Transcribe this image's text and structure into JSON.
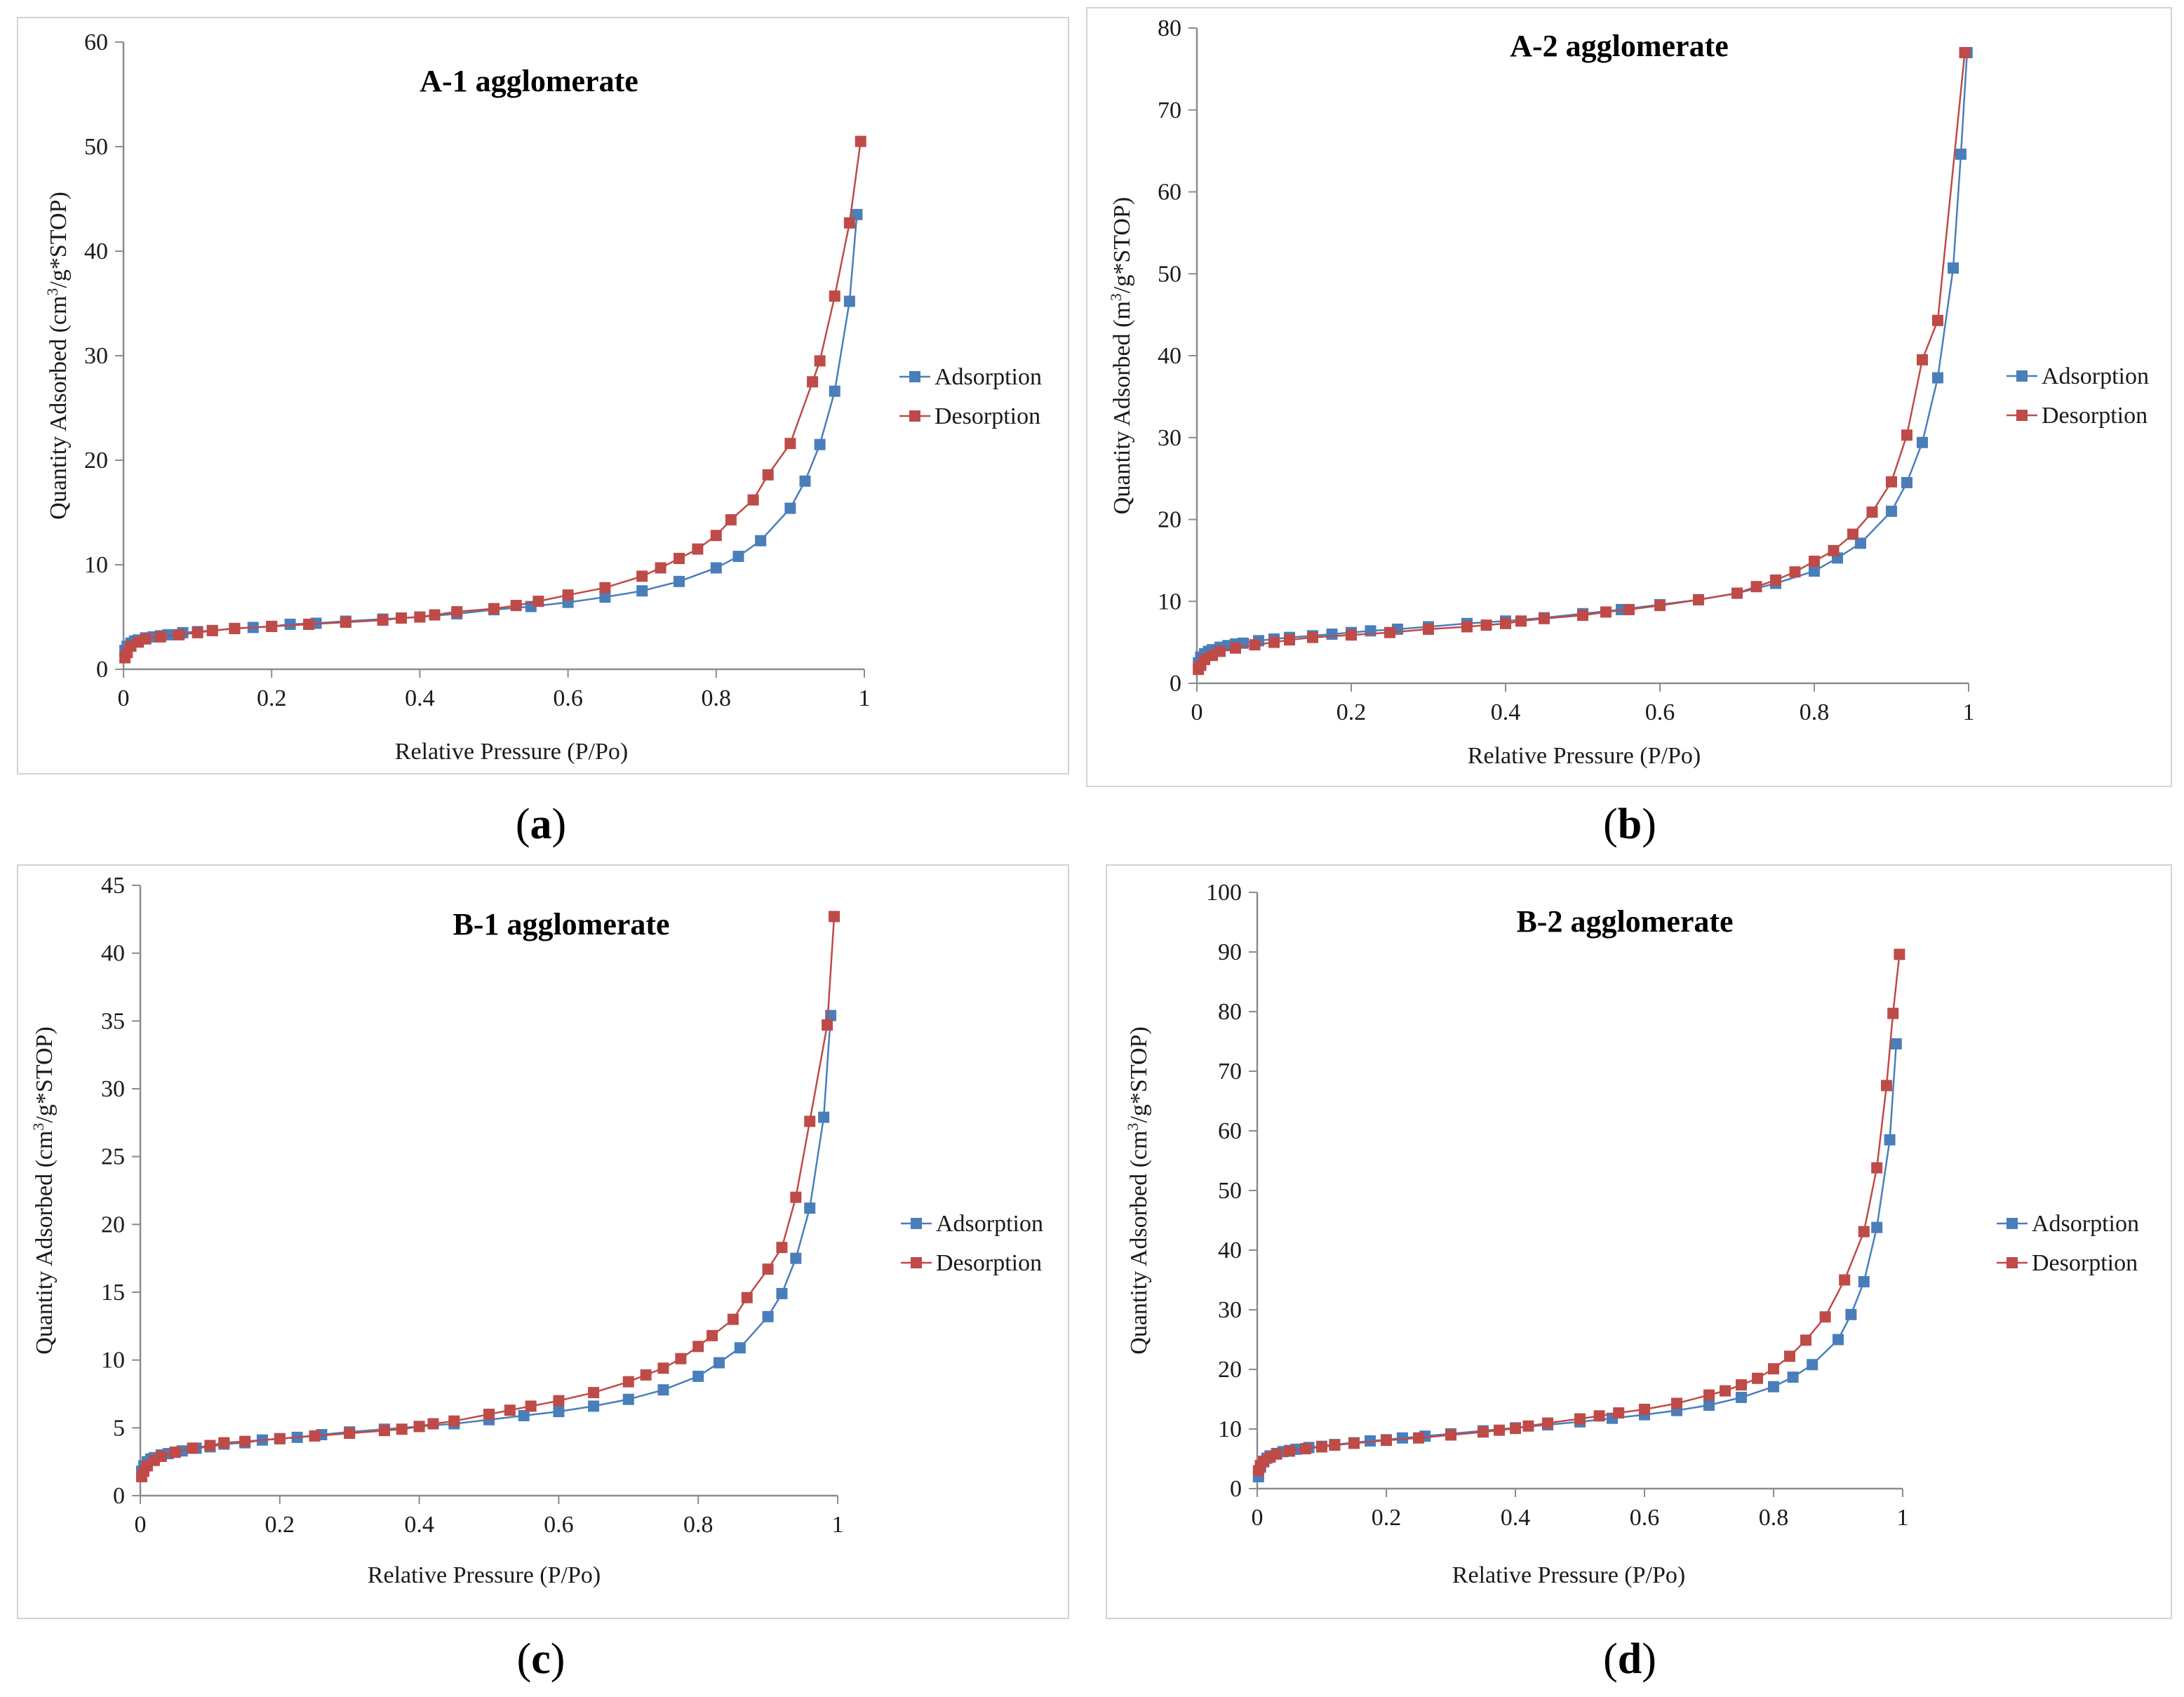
{
  "colors": {
    "adsorption": "#4a7ebb",
    "desorption": "#be4b48"
  },
  "chart_data": [
    {
      "panel": "a",
      "caption_open": "(",
      "caption_letter": "a",
      "caption_close": ")",
      "type": "line",
      "title": "A-1 agglomerate",
      "xlabel": "Relative Pressure (P/Po)",
      "ylabel_parts": [
        "Quantity Adsorbed  (cm",
        "3",
        "/g*STOP)"
      ],
      "xlim": [
        0,
        1
      ],
      "ylim": [
        0,
        60
      ],
      "xticks": [
        0,
        0.2,
        0.4,
        0.6,
        0.8,
        1
      ],
      "xtick_labels": [
        "0",
        "0.2",
        "0.4",
        "0.6",
        "0.8",
        "1"
      ],
      "yticks": [
        0,
        10,
        20,
        30,
        40,
        50,
        60
      ],
      "ytick_labels": [
        "0",
        "10",
        "20",
        "30",
        "40",
        "50",
        "60"
      ],
      "legend_position": "right",
      "series": [
        {
          "name": "Adsorption",
          "color_key": "adsorption",
          "x": [
            0.002,
            0.005,
            0.01,
            0.015,
            0.02,
            0.03,
            0.04,
            0.05,
            0.06,
            0.08,
            0.1,
            0.12,
            0.15,
            0.175,
            0.2,
            0.225,
            0.26,
            0.3,
            0.35,
            0.4,
            0.45,
            0.5,
            0.55,
            0.6,
            0.65,
            0.7,
            0.75,
            0.8,
            0.83,
            0.86,
            0.9,
            0.92,
            0.94,
            0.96,
            0.98,
            0.99
          ],
          "y": [
            1.8,
            2.2,
            2.5,
            2.7,
            2.8,
            3.0,
            3.1,
            3.2,
            3.3,
            3.5,
            3.6,
            3.7,
            3.9,
            4.0,
            4.1,
            4.3,
            4.4,
            4.6,
            4.8,
            5.0,
            5.3,
            5.7,
            6.0,
            6.4,
            6.9,
            7.5,
            8.4,
            9.7,
            10.8,
            12.3,
            15.4,
            18.0,
            21.5,
            26.6,
            35.2,
            43.5
          ]
        },
        {
          "name": "Desorption",
          "color_key": "desorption",
          "x": [
            0.995,
            0.98,
            0.96,
            0.94,
            0.93,
            0.9,
            0.87,
            0.85,
            0.82,
            0.8,
            0.775,
            0.75,
            0.725,
            0.7,
            0.65,
            0.6,
            0.56,
            0.53,
            0.5,
            0.45,
            0.42,
            0.4,
            0.375,
            0.35,
            0.3,
            0.25,
            0.2,
            0.15,
            0.12,
            0.1,
            0.075,
            0.05,
            0.03,
            0.02,
            0.01,
            0.005,
            0.002
          ],
          "y": [
            50.5,
            42.7,
            35.7,
            29.5,
            27.5,
            21.6,
            18.6,
            16.2,
            14.3,
            12.8,
            11.5,
            10.6,
            9.7,
            8.9,
            7.8,
            7.1,
            6.5,
            6.1,
            5.8,
            5.5,
            5.2,
            5.0,
            4.9,
            4.7,
            4.5,
            4.3,
            4.1,
            3.9,
            3.7,
            3.5,
            3.3,
            3.1,
            2.9,
            2.6,
            2.2,
            1.6,
            1.1
          ]
        }
      ]
    },
    {
      "panel": "b",
      "caption_open": "(",
      "caption_letter": "b",
      "caption_close": ")",
      "type": "line",
      "title": "A-2 agglomerate",
      "xlabel": "Relative Pressure (P/Po)",
      "ylabel_parts": [
        "Quantity Adsorbed  (m",
        "3",
        "/g*STOP)"
      ],
      "xlim": [
        0,
        1
      ],
      "ylim": [
        0,
        80
      ],
      "xticks": [
        0,
        0.2,
        0.4,
        0.6,
        0.8,
        1
      ],
      "xtick_labels": [
        "0",
        "0.2",
        "0.4",
        "0.6",
        "0.8",
        "1"
      ],
      "yticks": [
        0,
        10,
        20,
        30,
        40,
        50,
        60,
        70,
        80
      ],
      "ytick_labels": [
        "0",
        "10",
        "20",
        "30",
        "40",
        "50",
        "60",
        "70",
        "80"
      ],
      "legend_position": "right",
      "series": [
        {
          "name": "Adsorption",
          "color_key": "adsorption",
          "x": [
            0.002,
            0.005,
            0.01,
            0.015,
            0.02,
            0.03,
            0.04,
            0.05,
            0.06,
            0.08,
            0.1,
            0.12,
            0.15,
            0.175,
            0.2,
            0.225,
            0.26,
            0.3,
            0.35,
            0.4,
            0.45,
            0.5,
            0.55,
            0.6,
            0.65,
            0.7,
            0.75,
            0.8,
            0.83,
            0.86,
            0.9,
            0.92,
            0.94,
            0.96,
            0.98,
            0.99,
            0.998
          ],
          "y": [
            2.5,
            3.2,
            3.6,
            3.9,
            4.1,
            4.4,
            4.6,
            4.8,
            4.9,
            5.2,
            5.4,
            5.6,
            5.8,
            6.0,
            6.2,
            6.4,
            6.6,
            6.9,
            7.3,
            7.6,
            8.0,
            8.5,
            9.0,
            9.6,
            10.2,
            11.0,
            12.2,
            13.7,
            15.3,
            17.1,
            21.0,
            24.5,
            29.4,
            37.3,
            50.7,
            64.6,
            77.0
          ]
        },
        {
          "name": "Desorption",
          "color_key": "desorption",
          "x": [
            0.995,
            0.96,
            0.94,
            0.92,
            0.9,
            0.875,
            0.85,
            0.825,
            0.8,
            0.775,
            0.75,
            0.725,
            0.7,
            0.65,
            0.6,
            0.56,
            0.53,
            0.5,
            0.45,
            0.42,
            0.4,
            0.375,
            0.35,
            0.3,
            0.25,
            0.2,
            0.15,
            0.12,
            0.1,
            0.075,
            0.05,
            0.03,
            0.02,
            0.01,
            0.005,
            0.002
          ],
          "y": [
            77.0,
            44.3,
            39.5,
            30.3,
            24.6,
            20.9,
            18.2,
            16.2,
            14.9,
            13.6,
            12.6,
            11.8,
            11.0,
            10.2,
            9.5,
            9.0,
            8.7,
            8.3,
            7.9,
            7.6,
            7.3,
            7.1,
            6.9,
            6.6,
            6.2,
            5.9,
            5.6,
            5.3,
            5.0,
            4.7,
            4.3,
            3.9,
            3.4,
            2.9,
            2.2,
            1.7
          ]
        }
      ]
    },
    {
      "panel": "c",
      "caption_open": "(",
      "caption_letter": "c",
      "caption_close": ")",
      "type": "line",
      "title": "B-1 agglomerate",
      "xlabel": "Relative Pressure (P/Po)",
      "ylabel_parts": [
        "Quantity Adsorbed  (cm",
        "3",
        "/g*STOP)"
      ],
      "xlim": [
        0,
        1
      ],
      "ylim": [
        0,
        45
      ],
      "xticks": [
        0,
        0.2,
        0.4,
        0.6,
        0.8,
        1
      ],
      "xtick_labels": [
        "0",
        "0.2",
        "0.4",
        "0.6",
        "0.8",
        "1"
      ],
      "yticks": [
        0,
        5,
        10,
        15,
        20,
        25,
        30,
        35,
        40,
        45
      ],
      "ytick_labels": [
        "0",
        "5",
        "10",
        "15",
        "20",
        "25",
        "30",
        "35",
        "40",
        "45"
      ],
      "legend_position": "right",
      "series": [
        {
          "name": "Adsorption",
          "color_key": "adsorption",
          "x": [
            0.002,
            0.005,
            0.01,
            0.015,
            0.02,
            0.03,
            0.04,
            0.05,
            0.06,
            0.08,
            0.1,
            0.12,
            0.15,
            0.175,
            0.2,
            0.225,
            0.26,
            0.3,
            0.35,
            0.4,
            0.45,
            0.5,
            0.55,
            0.6,
            0.65,
            0.7,
            0.75,
            0.8,
            0.83,
            0.86,
            0.9,
            0.92,
            0.94,
            0.96,
            0.98,
            0.99
          ],
          "y": [
            1.8,
            2.2,
            2.5,
            2.7,
            2.8,
            3.0,
            3.1,
            3.2,
            3.3,
            3.5,
            3.6,
            3.8,
            3.9,
            4.1,
            4.2,
            4.3,
            4.5,
            4.7,
            4.9,
            5.1,
            5.3,
            5.6,
            5.9,
            6.2,
            6.6,
            7.1,
            7.8,
            8.8,
            9.8,
            10.9,
            13.2,
            14.9,
            17.5,
            21.2,
            27.9,
            35.4
          ]
        },
        {
          "name": "Desorption",
          "color_key": "desorption",
          "x": [
            0.995,
            0.985,
            0.96,
            0.94,
            0.92,
            0.9,
            0.87,
            0.85,
            0.82,
            0.8,
            0.775,
            0.75,
            0.725,
            0.7,
            0.65,
            0.6,
            0.56,
            0.53,
            0.5,
            0.45,
            0.42,
            0.4,
            0.375,
            0.35,
            0.3,
            0.25,
            0.2,
            0.15,
            0.12,
            0.1,
            0.075,
            0.05,
            0.03,
            0.02,
            0.01,
            0.005,
            0.002
          ],
          "y": [
            42.7,
            34.7,
            27.6,
            22.0,
            18.3,
            16.7,
            14.6,
            13.0,
            11.8,
            11.0,
            10.1,
            9.4,
            8.9,
            8.4,
            7.6,
            7.0,
            6.6,
            6.3,
            6.0,
            5.5,
            5.3,
            5.1,
            4.9,
            4.8,
            4.6,
            4.4,
            4.2,
            4.0,
            3.9,
            3.7,
            3.5,
            3.2,
            2.9,
            2.6,
            2.2,
            1.8,
            1.4
          ]
        }
      ]
    },
    {
      "panel": "d",
      "caption_open": "(",
      "caption_letter": "d",
      "caption_close": ")",
      "type": "line",
      "title": "B-2 agglomerate",
      "xlabel": "Relative Pressure (P/Po)",
      "ylabel_parts": [
        "Quantity Adsorbed  (cm",
        "3",
        "/g*STOP)"
      ],
      "xlim": [
        0,
        1
      ],
      "ylim": [
        0,
        100
      ],
      "xticks": [
        0,
        0.2,
        0.4,
        0.6,
        0.8,
        1
      ],
      "xtick_labels": [
        "0",
        "0.2",
        "0.4",
        "0.6",
        "0.8",
        "1"
      ],
      "yticks": [
        0,
        10,
        20,
        30,
        40,
        50,
        60,
        70,
        80,
        90,
        100
      ],
      "ytick_labels": [
        "0",
        "10",
        "20",
        "30",
        "40",
        "50",
        "60",
        "70",
        "80",
        "90",
        "100"
      ],
      "legend_position": "right",
      "series": [
        {
          "name": "Adsorption",
          "color_key": "adsorption",
          "x": [
            0.002,
            0.005,
            0.01,
            0.015,
            0.02,
            0.03,
            0.04,
            0.05,
            0.06,
            0.08,
            0.1,
            0.12,
            0.15,
            0.175,
            0.2,
            0.225,
            0.26,
            0.3,
            0.35,
            0.4,
            0.45,
            0.5,
            0.55,
            0.6,
            0.65,
            0.7,
            0.75,
            0.8,
            0.83,
            0.86,
            0.9,
            0.92,
            0.94,
            0.96,
            0.98,
            0.99
          ],
          "y": [
            2.0,
            3.6,
            4.5,
            5.1,
            5.5,
            5.9,
            6.2,
            6.4,
            6.6,
            6.9,
            7.1,
            7.4,
            7.7,
            8.0,
            8.2,
            8.5,
            8.8,
            9.2,
            9.7,
            10.2,
            10.7,
            11.2,
            11.8,
            12.4,
            13.1,
            14.0,
            15.3,
            17.1,
            18.7,
            20.8,
            25.0,
            29.2,
            34.7,
            43.8,
            58.5,
            74.6
          ]
        },
        {
          "name": "Desorption",
          "color_key": "desorption",
          "x": [
            0.995,
            0.985,
            0.975,
            0.96,
            0.94,
            0.91,
            0.88,
            0.85,
            0.825,
            0.8,
            0.775,
            0.75,
            0.725,
            0.7,
            0.65,
            0.6,
            0.56,
            0.53,
            0.5,
            0.45,
            0.42,
            0.4,
            0.375,
            0.35,
            0.3,
            0.25,
            0.2,
            0.15,
            0.12,
            0.1,
            0.075,
            0.05,
            0.03,
            0.02,
            0.01,
            0.005,
            0.002
          ],
          "y": [
            89.6,
            79.7,
            67.6,
            53.8,
            43.1,
            35.0,
            28.8,
            24.9,
            22.2,
            20.1,
            18.5,
            17.4,
            16.4,
            15.7,
            14.3,
            13.3,
            12.7,
            12.2,
            11.7,
            11.0,
            10.5,
            10.1,
            9.8,
            9.5,
            9.0,
            8.5,
            8.1,
            7.6,
            7.3,
            7.0,
            6.7,
            6.3,
            5.8,
            5.3,
            4.6,
            3.9,
            3.0
          ]
        }
      ]
    }
  ]
}
